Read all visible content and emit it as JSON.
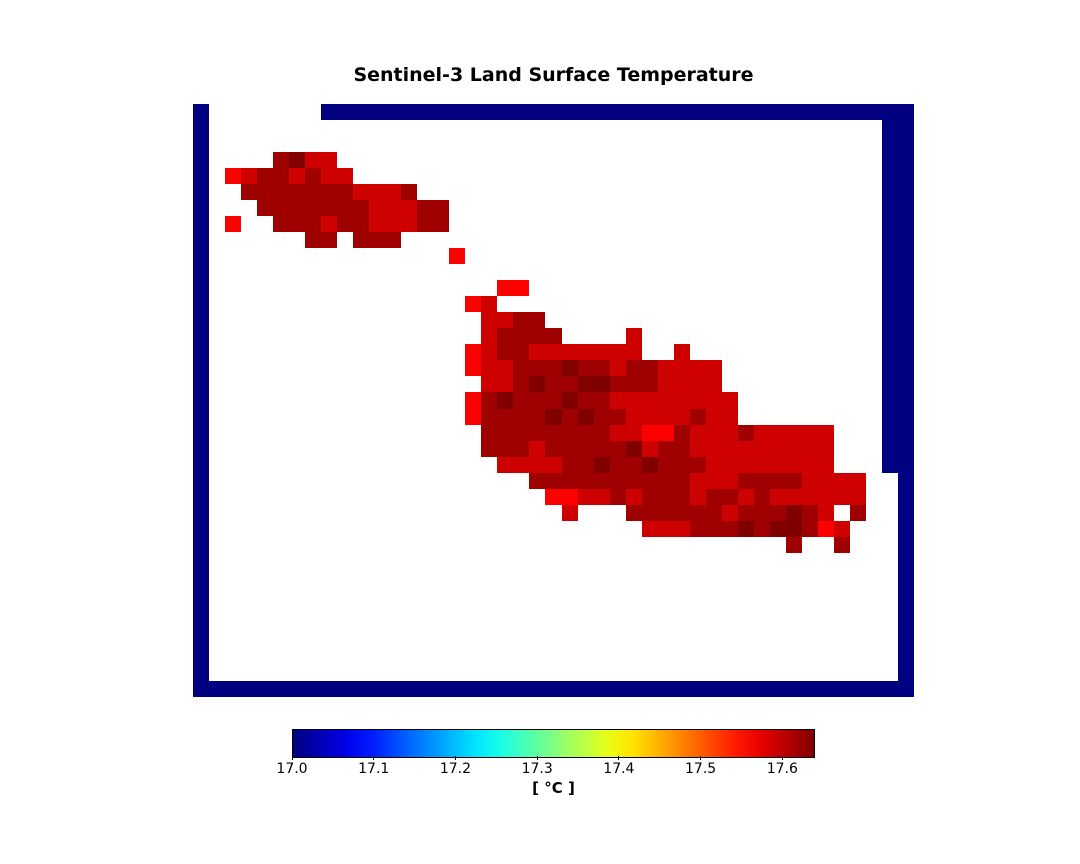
{
  "chart_data": {
    "type": "heatmap",
    "title": "Sentinel-3 Land Surface Temperature",
    "colormap": "jet",
    "vmin": 17.0,
    "vmax": 17.64,
    "nodata_color": "#000080",
    "background_color": "#ffffff",
    "colorbar": {
      "label": "[ °C ]",
      "ticks": [
        "17.0",
        "17.1",
        "17.2",
        "17.3",
        "17.4",
        "17.5",
        "17.6"
      ],
      "tick_values": [
        17.0,
        17.1,
        17.2,
        17.3,
        17.4,
        17.5,
        17.6
      ]
    },
    "grid": {
      "rows": 37,
      "cols": 45,
      "legend": "N = no data (dark blue), . = no value (white), a = 17.56, b = 17.59, c = 17.62, d = 17.64",
      "values": [
        "N.......NNNNNNNNNNNNNNNNNNNNNNNNNNNNNNNNNNNNN",
        "N..........................................NN",
        "N..........................................NN",
        "N....cdbb..................................NN",
        "N.abccbcbb.................................NN",
        "N..cccccccbbbc.............................NN",
        "N...cccccccbbbcc...........................NN",
        "N.a..cccbccbbbcc...........................NN",
        "N......cc.ccc..............................NN",
        "N...............a..........................NN",
        "N..........................................NN",
        "N..................aa......................NN",
        "N................ab........................NN",
        "N.................bbcc.....................NN",
        "N.................bcccc....b...............NN",
        "N................abccbbbbbbb..b............NN",
        "N................abbcccdccbccbbbb..........NN",
        "N.................bbcdccddcccbbbb..........NN",
        "N................acdcccdccbbbbbbbb.........NN",
        "N................accccdcdccbbbbcbb.........NN",
        "N.................ccccccccbbaacbbbcbbbbb...NN",
        "N.................cccbcccccdbccbbbbbbbbb...NN",
        "N..................bbbbccdccdcccbbbbbbbb...NN",
        "N....................ccccccccccbbbccccbbbb..N",
        "N.....................aabbcbcccbccbcbbbbbb..N",
        "N......................b...ccccccbcccdcb.c..N",
        "N...........................bbbcccdcddcab...N",
        "N....................................c..c...N",
        "N...........................................N",
        "N...........................................N",
        "N...........................................N",
        "N...........................................N",
        "N...........................................N",
        "N...........................................N",
        "N...........................................N",
        "N...........................................N",
        "NNNNNNNNNNNNNNNNNNNNNNNNNNNNNNNNNNNNNNNNNNNNN"
      ]
    }
  }
}
